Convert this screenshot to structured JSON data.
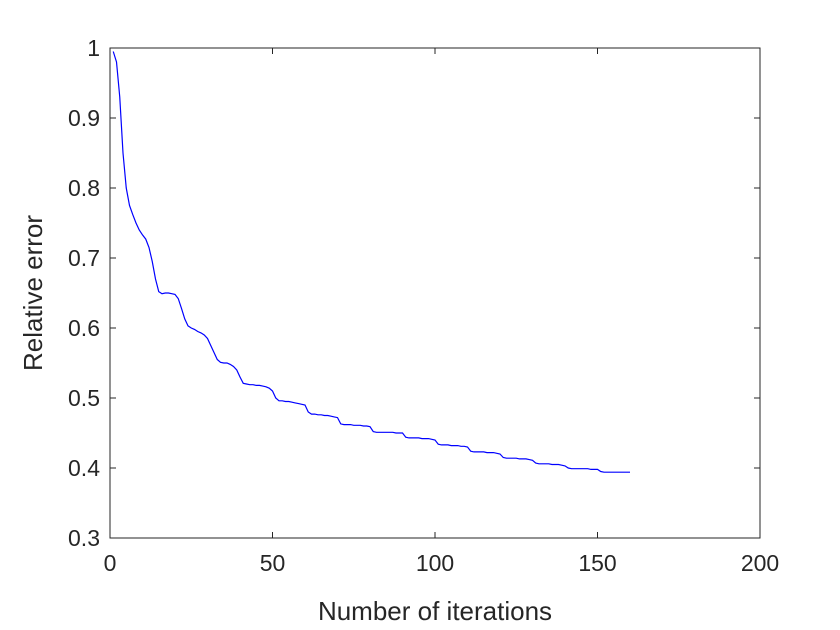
{
  "chart_data": {
    "type": "line",
    "title": "",
    "xlabel": "Number of iterations",
    "ylabel": "Relative error",
    "xlim": [
      0,
      200
    ],
    "ylim": [
      0.3,
      1
    ],
    "xticks": [
      0,
      50,
      100,
      150,
      200
    ],
    "xtick_labels": [
      "0",
      "50",
      "100",
      "150",
      "200"
    ],
    "yticks": [
      0.3,
      0.4,
      0.5,
      0.6,
      0.7,
      0.8,
      0.9,
      1
    ],
    "ytick_labels": [
      "0.3",
      "0.4",
      "0.5",
      "0.6",
      "0.7",
      "0.8",
      "0.9",
      "1"
    ],
    "grid": false,
    "line_color": "#0000ff",
    "series": [
      {
        "x": [
          1,
          2,
          3,
          4,
          5,
          6,
          7,
          8,
          9,
          10,
          11,
          12,
          13,
          14,
          15,
          16,
          17,
          18,
          19,
          20,
          21,
          22,
          23,
          24,
          25,
          26,
          27,
          28,
          29,
          30,
          31,
          32,
          33,
          34,
          35,
          36,
          37,
          38,
          39,
          40,
          41,
          42,
          43,
          44,
          45,
          46,
          47,
          48,
          49,
          50,
          51,
          52,
          53,
          54,
          55,
          56,
          57,
          58,
          59,
          60,
          61,
          62,
          63,
          64,
          65,
          66,
          67,
          68,
          69,
          70,
          71,
          72,
          73,
          74,
          75,
          76,
          77,
          78,
          79,
          80,
          81,
          82,
          83,
          84,
          85,
          86,
          87,
          88,
          89,
          90,
          91,
          92,
          93,
          94,
          95,
          96,
          97,
          98,
          99,
          100,
          101,
          102,
          103,
          104,
          105,
          106,
          107,
          108,
          109,
          110,
          111,
          112,
          113,
          114,
          115,
          116,
          117,
          118,
          119,
          120,
          121,
          122,
          123,
          124,
          125,
          126,
          127,
          128,
          129,
          130,
          131,
          132,
          133,
          134,
          135,
          136,
          137,
          138,
          139,
          140,
          141,
          142,
          143,
          144,
          145,
          146,
          147,
          148,
          149,
          150,
          151,
          152,
          153,
          154,
          155,
          156,
          157,
          158,
          159,
          160
        ],
        "values": [
          0.995,
          0.98,
          0.93,
          0.85,
          0.8,
          0.775,
          0.762,
          0.75,
          0.74,
          0.733,
          0.727,
          0.715,
          0.695,
          0.67,
          0.652,
          0.649,
          0.65,
          0.65,
          0.649,
          0.648,
          0.642,
          0.628,
          0.613,
          0.603,
          0.6,
          0.598,
          0.595,
          0.593,
          0.59,
          0.585,
          0.575,
          0.565,
          0.555,
          0.551,
          0.55,
          0.55,
          0.548,
          0.545,
          0.54,
          0.53,
          0.521,
          0.52,
          0.519,
          0.519,
          0.518,
          0.518,
          0.517,
          0.516,
          0.514,
          0.51,
          0.5,
          0.496,
          0.496,
          0.495,
          0.495,
          0.494,
          0.493,
          0.492,
          0.491,
          0.49,
          0.48,
          0.477,
          0.477,
          0.476,
          0.476,
          0.475,
          0.475,
          0.474,
          0.473,
          0.472,
          0.463,
          0.462,
          0.462,
          0.462,
          0.461,
          0.461,
          0.461,
          0.46,
          0.46,
          0.459,
          0.452,
          0.451,
          0.451,
          0.451,
          0.451,
          0.451,
          0.451,
          0.45,
          0.45,
          0.45,
          0.444,
          0.443,
          0.443,
          0.443,
          0.443,
          0.442,
          0.442,
          0.442,
          0.441,
          0.44,
          0.434,
          0.433,
          0.433,
          0.433,
          0.432,
          0.432,
          0.432,
          0.431,
          0.431,
          0.43,
          0.424,
          0.423,
          0.423,
          0.423,
          0.423,
          0.422,
          0.422,
          0.422,
          0.421,
          0.42,
          0.415,
          0.414,
          0.414,
          0.414,
          0.414,
          0.413,
          0.413,
          0.413,
          0.412,
          0.411,
          0.407,
          0.406,
          0.406,
          0.406,
          0.406,
          0.405,
          0.405,
          0.405,
          0.404,
          0.403,
          0.4,
          0.399,
          0.399,
          0.399,
          0.399,
          0.399,
          0.399,
          0.398,
          0.398,
          0.398,
          0.395,
          0.394,
          0.394,
          0.394,
          0.394,
          0.394,
          0.394,
          0.394,
          0.394,
          0.394
        ]
      }
    ]
  }
}
